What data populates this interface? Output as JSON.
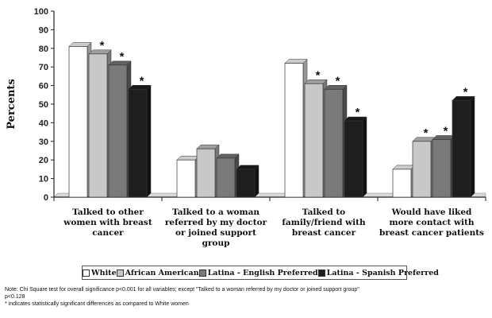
{
  "chart_data": {
    "type": "bar",
    "ylabel": "Percents",
    "ylim": [
      0,
      100
    ],
    "yticks": [
      0,
      10,
      20,
      30,
      40,
      50,
      60,
      70,
      80,
      90,
      100
    ],
    "grid": false,
    "legend_position": "bottom",
    "categories": [
      [
        "Talked to other",
        "women with breast",
        "cancer"
      ],
      [
        "Talked to a woman",
        "referred by my doctor",
        "or joined support",
        "group"
      ],
      [
        "Talked to",
        "family/friend with",
        "breast cancer"
      ],
      [
        "Would have liked",
        "more contact with",
        "breast cancer patients"
      ]
    ],
    "series": [
      {
        "name": "White",
        "color": "#ffffff",
        "values": [
          81,
          20,
          72,
          15
        ],
        "significant": [
          false,
          false,
          false,
          false
        ]
      },
      {
        "name": "African American",
        "color": "#c8c8c8",
        "values": [
          77,
          26,
          61,
          30
        ],
        "significant": [
          true,
          false,
          true,
          true
        ]
      },
      {
        "name": "Latina - English Preferred",
        "color": "#7a7a7a",
        "values": [
          71,
          21,
          58,
          31
        ],
        "significant": [
          true,
          false,
          true,
          true
        ]
      },
      {
        "name": "Latina - Spanish Preferred",
        "color": "#1e1e1e",
        "values": [
          58,
          15,
          41,
          52
        ],
        "significant": [
          true,
          false,
          true,
          true
        ]
      }
    ],
    "significance_marker": "*"
  },
  "notes": [
    "Note: Chi Square test for overall significance p<0.001 for all variables; except \"Talked to a woman referred by my doctor or joined support group\"",
    "p<0.128",
    "* indicates statistically significant differences as compared to White women"
  ]
}
